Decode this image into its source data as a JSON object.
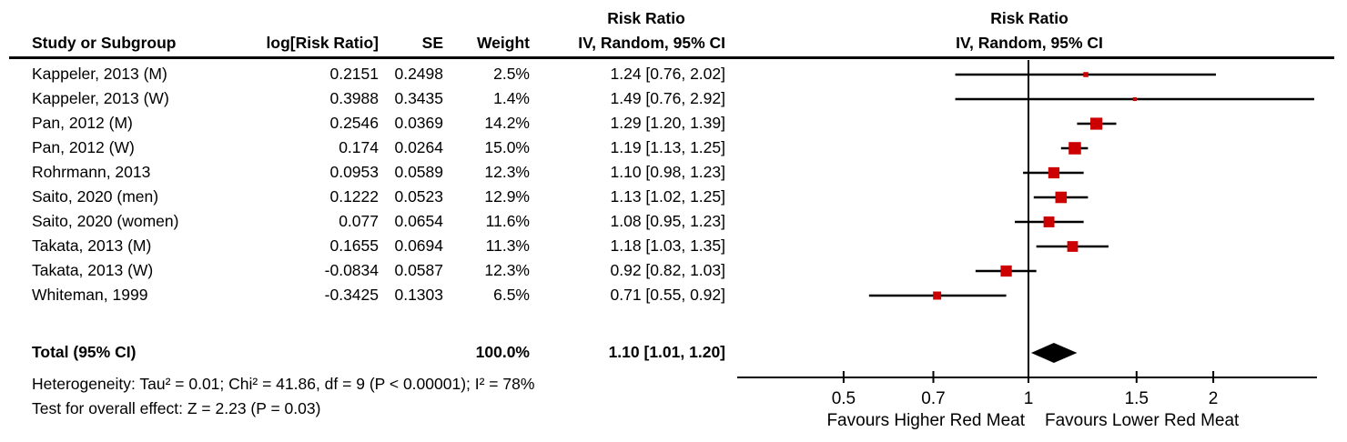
{
  "table": {
    "columns": {
      "study": "Study or Subgroup",
      "log_rr": "log[Risk Ratio]",
      "se": "SE",
      "weight": "Weight",
      "estimate_top": "Risk Ratio",
      "estimate": "IV, Random, 95% CI"
    },
    "studies": [
      {
        "name": "Kappeler, 2013 (M)",
        "log_rr": "0.2151",
        "se": "0.2498",
        "weight": "2.5%",
        "estimate": "1.24 [0.76, 2.02]"
      },
      {
        "name": "Kappeler, 2013 (W)",
        "log_rr": "0.3988",
        "se": "0.3435",
        "weight": "1.4%",
        "estimate": "1.49 [0.76, 2.92]"
      },
      {
        "name": "Pan, 2012 (M)",
        "log_rr": "0.2546",
        "se": "0.0369",
        "weight": "14.2%",
        "estimate": "1.29 [1.20, 1.39]"
      },
      {
        "name": "Pan, 2012 (W)",
        "log_rr": "0.174",
        "se": "0.0264",
        "weight": "15.0%",
        "estimate": "1.19 [1.13, 1.25]"
      },
      {
        "name": "Rohrmann, 2013",
        "log_rr": "0.0953",
        "se": "0.0589",
        "weight": "12.3%",
        "estimate": "1.10 [0.98, 1.23]"
      },
      {
        "name": "Saito, 2020 (men)",
        "log_rr": "0.1222",
        "se": "0.0523",
        "weight": "12.9%",
        "estimate": "1.13 [1.02, 1.25]"
      },
      {
        "name": "Saito, 2020 (women)",
        "log_rr": "0.077",
        "se": "0.0654",
        "weight": "11.6%",
        "estimate": "1.08 [0.95, 1.23]"
      },
      {
        "name": "Takata, 2013 (M)",
        "log_rr": "0.1655",
        "se": "0.0694",
        "weight": "11.3%",
        "estimate": "1.18 [1.03, 1.35]"
      },
      {
        "name": "Takata, 2013 (W)",
        "log_rr": "-0.0834",
        "se": "0.0587",
        "weight": "12.3%",
        "estimate": "0.92 [0.82, 1.03]"
      },
      {
        "name": "Whiteman, 1999",
        "log_rr": "-0.3425",
        "se": "0.1303",
        "weight": "6.5%",
        "estimate": "0.71 [0.55, 0.92]"
      }
    ],
    "total": {
      "label": "Total (95% CI)",
      "weight": "100.0%",
      "estimate": "1.10 [1.01, 1.20]"
    },
    "heterogeneity": "Heterogeneity: Tau² = 0.01; Chi² = 41.86, df = 9 (P < 0.00001); I² = 78%",
    "overall_effect": "Test for overall effect: Z = 2.23 (P = 0.03)"
  },
  "chart_data": {
    "type": "scatter",
    "subtype": "forest-plot",
    "title": "Risk Ratio",
    "subtitle": "IV, Random, 95% CI",
    "x_scale": "log",
    "xlim": [
      0.335,
      2.95
    ],
    "null_line": 1,
    "ticks": [
      0.5,
      0.7,
      1,
      1.5,
      2
    ],
    "points": [
      {
        "label": "Kappeler, 2013 (M)",
        "rr": 1.24,
        "ci_low": 0.76,
        "ci_high": 2.02,
        "weight_pct": 2.5
      },
      {
        "label": "Kappeler, 2013 (W)",
        "rr": 1.49,
        "ci_low": 0.76,
        "ci_high": 2.92,
        "weight_pct": 1.4
      },
      {
        "label": "Pan, 2012 (M)",
        "rr": 1.29,
        "ci_low": 1.2,
        "ci_high": 1.39,
        "weight_pct": 14.2
      },
      {
        "label": "Pan, 2012 (W)",
        "rr": 1.19,
        "ci_low": 1.13,
        "ci_high": 1.25,
        "weight_pct": 15.0
      },
      {
        "label": "Rohrmann, 2013",
        "rr": 1.1,
        "ci_low": 0.98,
        "ci_high": 1.23,
        "weight_pct": 12.3
      },
      {
        "label": "Saito, 2020 (men)",
        "rr": 1.13,
        "ci_low": 1.02,
        "ci_high": 1.25,
        "weight_pct": 12.9
      },
      {
        "label": "Saito, 2020 (women)",
        "rr": 1.08,
        "ci_low": 0.95,
        "ci_high": 1.23,
        "weight_pct": 11.6
      },
      {
        "label": "Takata, 2013 (M)",
        "rr": 1.18,
        "ci_low": 1.03,
        "ci_high": 1.35,
        "weight_pct": 11.3
      },
      {
        "label": "Takata, 2013 (W)",
        "rr": 0.92,
        "ci_low": 0.82,
        "ci_high": 1.03,
        "weight_pct": 12.3
      },
      {
        "label": "Whiteman, 1999",
        "rr": 0.71,
        "ci_low": 0.55,
        "ci_high": 0.92,
        "weight_pct": 6.5
      }
    ],
    "diamond": {
      "rr": 1.1,
      "ci_low": 1.01,
      "ci_high": 1.2
    },
    "x_axis_labels": {
      "left": "Favours Higher Red Meat",
      "right": "Favours Lower Red Meat"
    },
    "colors": {
      "square": "#CC0000",
      "diamond": "#000000",
      "line": "#000000",
      "text": "#000000"
    },
    "legend_position": "none",
    "grid": false
  }
}
